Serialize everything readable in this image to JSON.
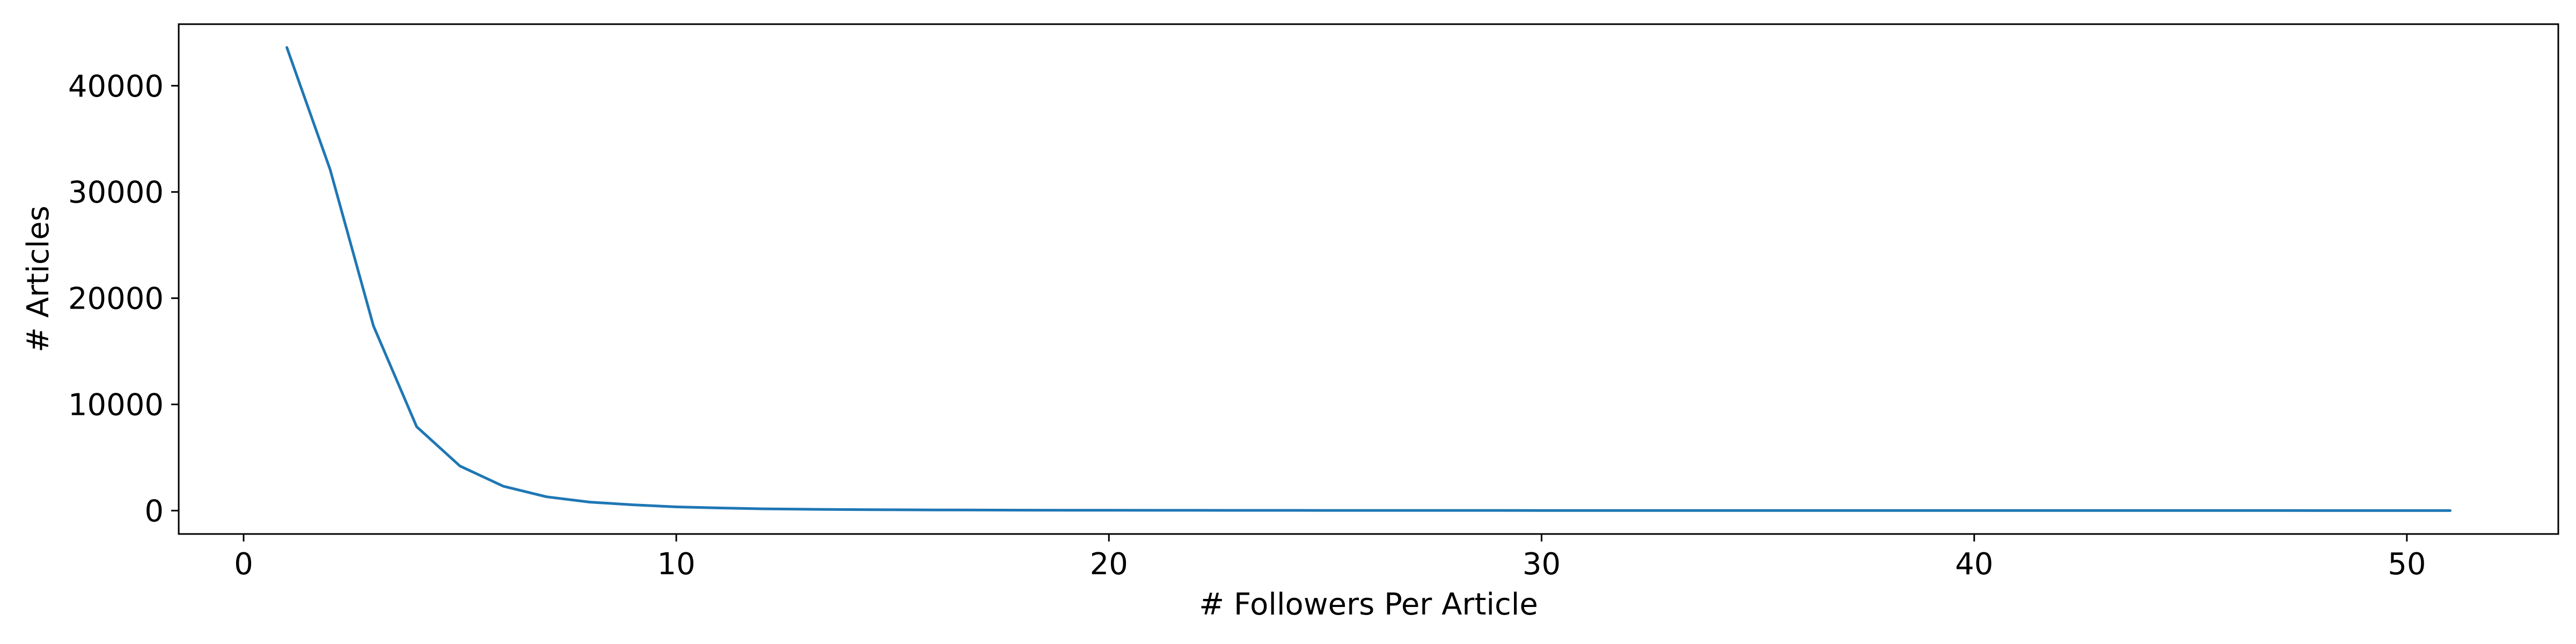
{
  "chart_data": {
    "type": "line",
    "title": "",
    "xlabel": "# Followers Per Article",
    "ylabel": "# Articles",
    "xlim": [
      -1.5,
      53.5
    ],
    "ylim": [
      -2200,
      45800
    ],
    "xticks": [
      0,
      10,
      20,
      30,
      40,
      50
    ],
    "yticks": [
      0,
      10000,
      20000,
      30000,
      40000
    ],
    "grid": false,
    "legend": "none",
    "series": [
      {
        "color": "#1f77b4",
        "x": [
          1,
          2,
          3,
          4,
          5,
          6,
          7,
          8,
          9,
          10,
          11,
          12,
          13,
          14,
          15,
          16,
          17,
          18,
          19,
          20,
          21,
          22,
          23,
          24,
          25,
          26,
          27,
          28,
          29,
          30,
          31,
          32,
          33,
          34,
          35,
          36,
          37,
          38,
          39,
          40,
          41,
          42,
          43,
          44,
          45,
          46,
          47,
          48,
          49,
          50,
          51
        ],
        "y": [
          43600,
          32100,
          17400,
          7900,
          4200,
          2300,
          1300,
          800,
          550,
          350,
          250,
          170,
          130,
          100,
          80,
          65,
          55,
          45,
          40,
          35,
          30,
          28,
          25,
          22,
          20,
          20,
          18,
          17,
          16,
          15,
          14,
          13,
          12,
          12,
          11,
          11,
          10,
          10,
          9,
          9,
          8,
          8,
          8,
          7,
          7,
          6,
          6,
          5,
          5,
          5,
          4
        ]
      }
    ]
  }
}
